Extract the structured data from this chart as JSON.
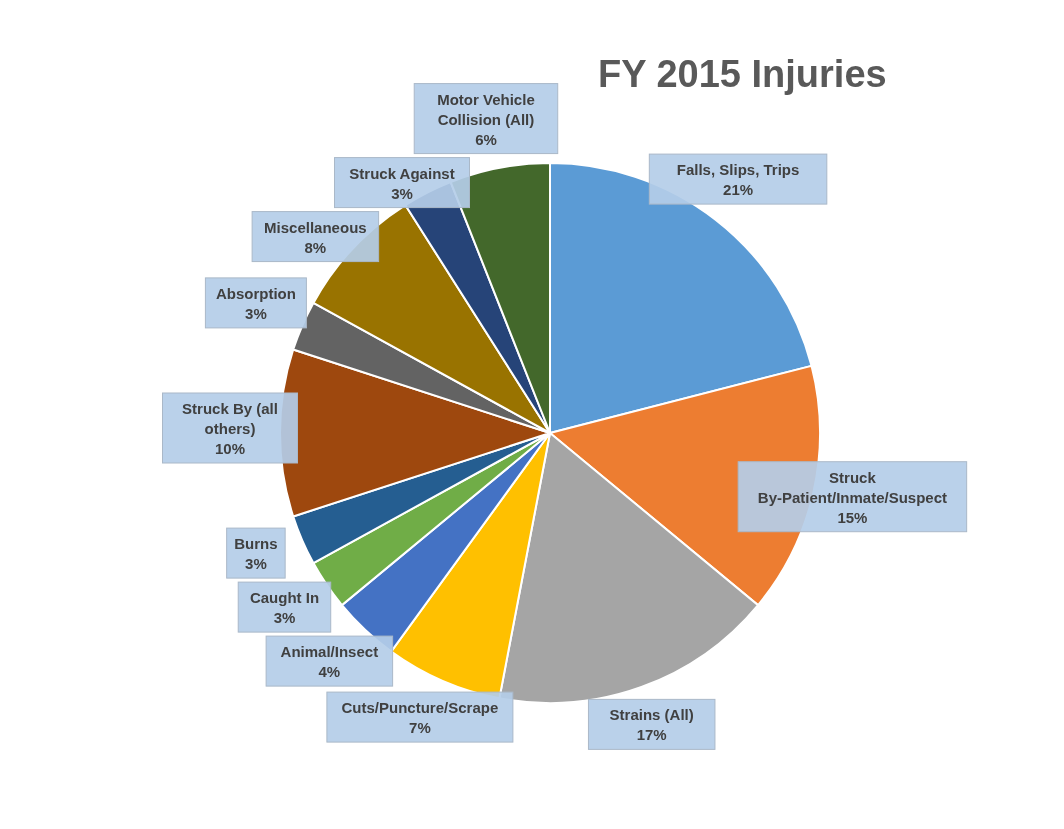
{
  "chart_data": {
    "type": "pie",
    "title": "FY 2015 Injuries",
    "categories": [
      "Falls, Slips, Trips",
      "Struck By-Patient/Inmate/Suspect",
      "Strains (All)",
      "Cuts/Puncture/Scrape",
      "Animal/Insect",
      "Caught In",
      "Burns",
      "Struck By (all others)",
      "Absorption",
      "Miscellaneous",
      "Struck Against",
      "Motor Vehicle Collision (All)"
    ],
    "values": [
      21,
      15,
      17,
      7,
      4,
      3,
      3,
      10,
      3,
      8,
      3,
      6
    ],
    "value_labels": [
      "21%",
      "15%",
      "17%",
      "7%",
      "4%",
      "3%",
      "3%",
      "10%",
      "3%",
      "8%",
      "3%",
      "6%"
    ],
    "colors": [
      "#5b9bd5",
      "#ed7d31",
      "#a5a5a5",
      "#ffc000",
      "#4472c4",
      "#70ad47",
      "#255e91",
      "#9e480e",
      "#636363",
      "#997300",
      "#264478",
      "#43682b"
    ]
  }
}
